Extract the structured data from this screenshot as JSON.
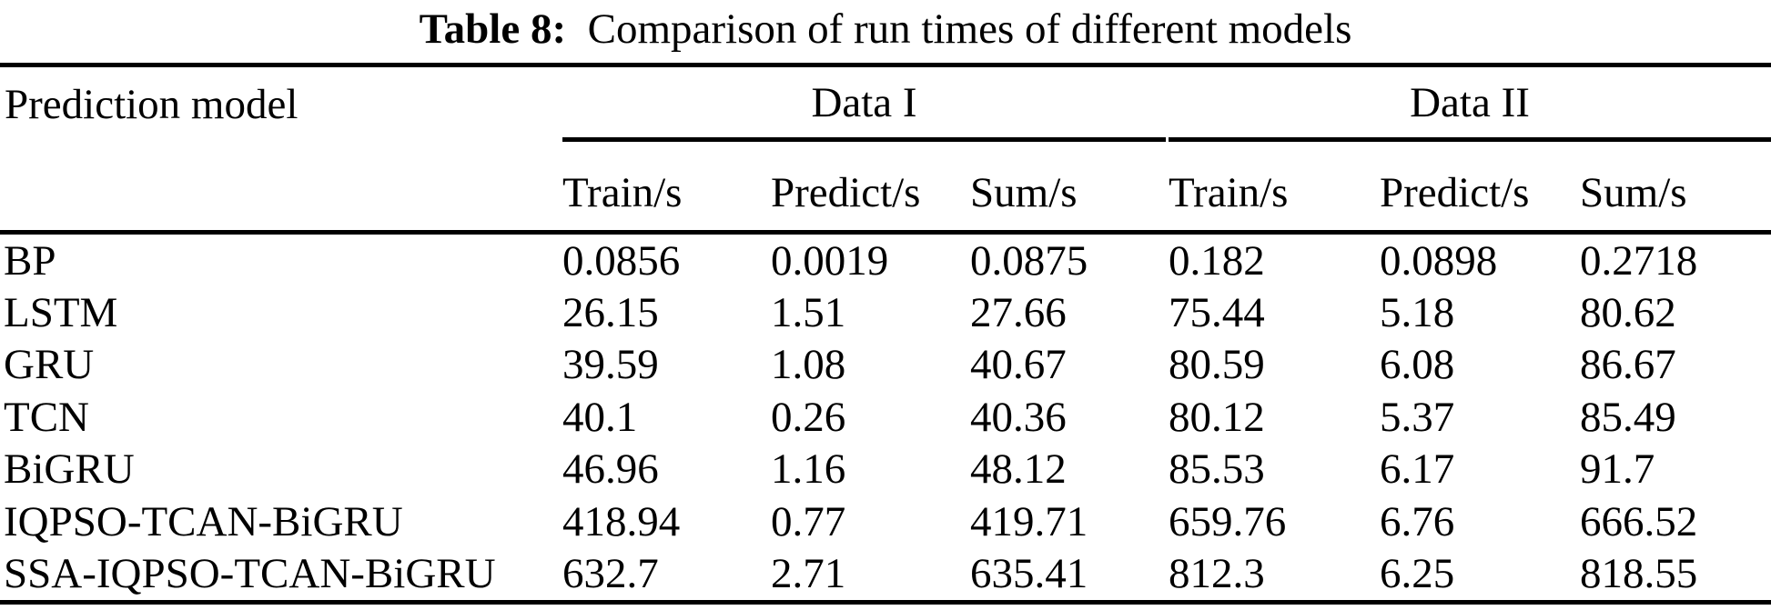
{
  "title": {
    "label": "Table 8:",
    "text": "  Comparison of run times of different models"
  },
  "table": {
    "corner_header": "Prediction model",
    "group_headers": [
      "Data I",
      "Data II"
    ],
    "sub_headers": [
      "Train/s",
      "Predict/s",
      "Sum/s",
      "Train/s",
      "Predict/s",
      "Sum/s"
    ],
    "rows": [
      {
        "model": "BP",
        "values": [
          "0.0856",
          "0.0019",
          "0.0875",
          "0.182",
          "0.0898",
          "0.2718"
        ]
      },
      {
        "model": "LSTM",
        "values": [
          "26.15",
          "1.51",
          "27.66",
          "75.44",
          "5.18",
          "80.62"
        ]
      },
      {
        "model": "GRU",
        "values": [
          "39.59",
          "1.08",
          "40.67",
          "80.59",
          "6.08",
          "86.67"
        ]
      },
      {
        "model": "TCN",
        "values": [
          "40.1",
          "0.26",
          "40.36",
          "80.12",
          "5.37",
          "85.49"
        ]
      },
      {
        "model": "BiGRU",
        "values": [
          "46.96",
          "1.16",
          "48.12",
          "85.53",
          "6.17",
          "91.7"
        ]
      },
      {
        "model": "IQPSO-TCAN-BiGRU",
        "values": [
          "418.94",
          "0.77",
          "419.71",
          "659.76",
          "6.76",
          "666.52"
        ]
      },
      {
        "model": "SSA-IQPSO-TCAN-BiGRU",
        "values": [
          "632.7",
          "2.71",
          "635.41",
          "812.3",
          "6.25",
          "818.55"
        ]
      }
    ]
  },
  "colors": {
    "text": "#000000",
    "background": "#ffffff",
    "rule": "#000000"
  }
}
